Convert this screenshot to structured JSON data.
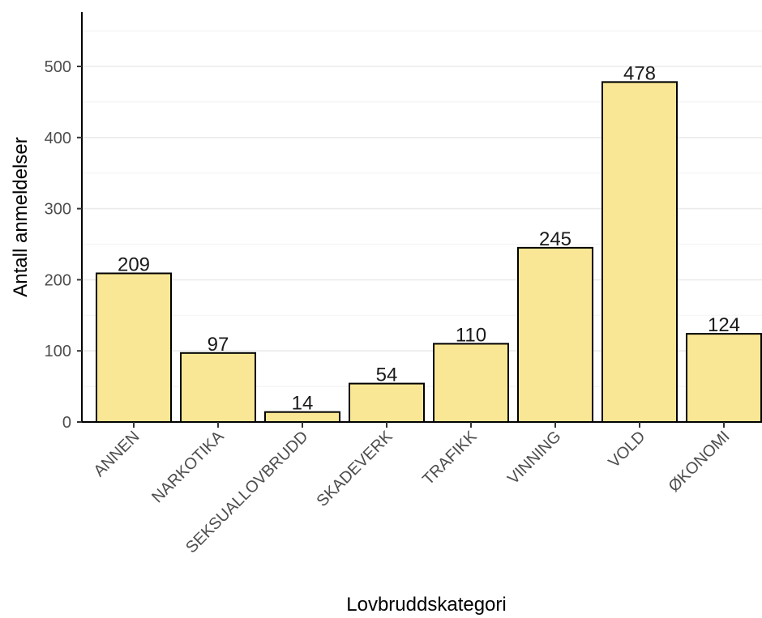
{
  "chart_data": {
    "type": "bar",
    "categories": [
      "ANNEN",
      "NARKOTIKA",
      "SEKSUALLOVBRUDD",
      "SKADEVERK",
      "TRAFIKK",
      "VINNING",
      "VOLD",
      "ØKONOMI"
    ],
    "values": [
      209,
      97,
      14,
      54,
      110,
      245,
      478,
      124
    ],
    "data_labels": [
      "209",
      "97",
      "14",
      "54",
      "110",
      "245",
      "478",
      "124"
    ],
    "xlabel": "Lovbruddskategori",
    "ylabel": "Antall anmeldelser",
    "ylim": [
      0,
      570
    ],
    "yticks": [
      0,
      100,
      200,
      300,
      400,
      500
    ],
    "ytick_labels": [
      "0",
      "100",
      "200",
      "300",
      "400",
      "500"
    ],
    "grid": true,
    "bar_color": "#f9e795",
    "bar_edge_color": "#000000"
  }
}
